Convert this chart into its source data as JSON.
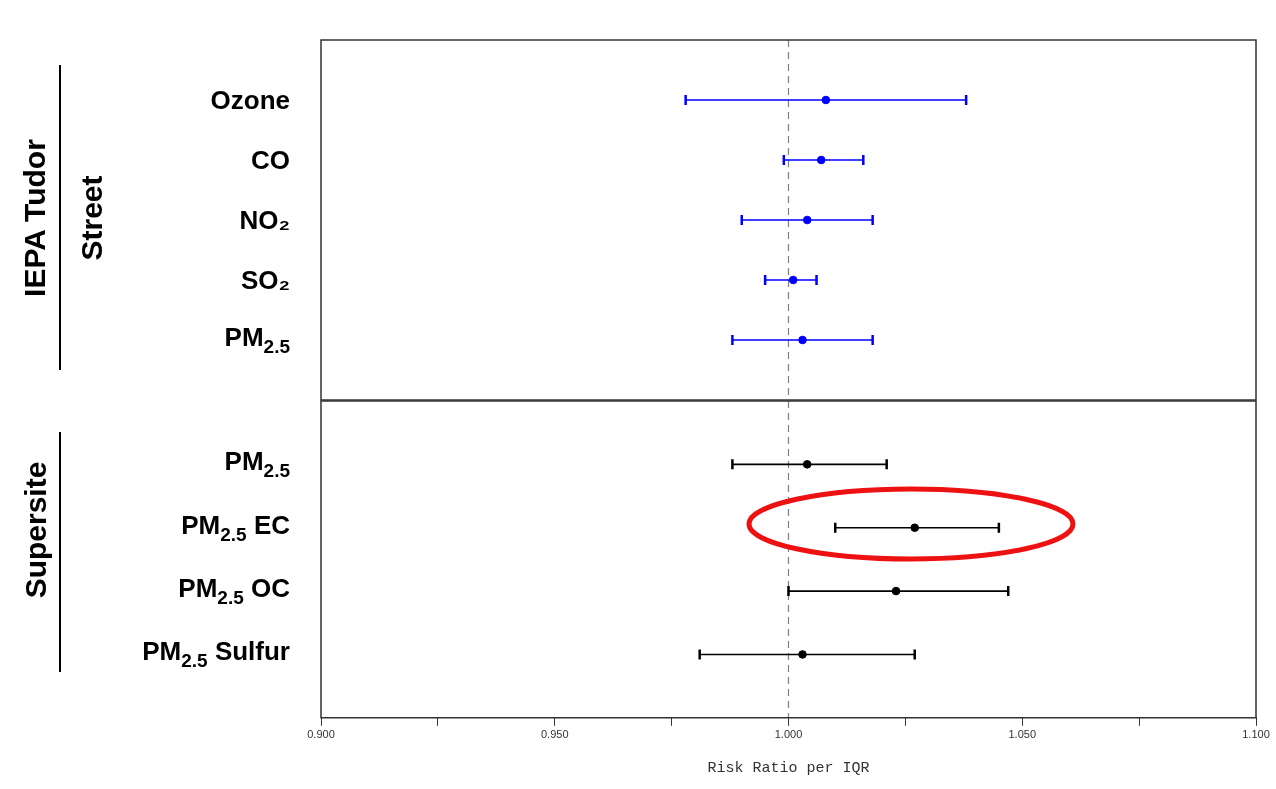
{
  "chart_data": [
    {
      "type": "scatter",
      "orientation": "horizontal",
      "categories": [
        "Ozone",
        "CO",
        "NO₂",
        "SO₂",
        "PM$_{2.5}$"
      ],
      "values": [
        1.008,
        1.007,
        1.004,
        1.001,
        1.003
      ],
      "errors": [
        [
          0.978,
          1.038
        ],
        [
          0.999,
          1.016
        ],
        [
          0.99,
          1.018
        ],
        [
          0.995,
          1.006
        ],
        [
          0.988,
          1.018
        ]
      ],
      "color": "#0000ff",
      "marker": "circle",
      "xlim": [
        0.9,
        1.1
      ],
      "tick_labels": "y",
      "legend": false,
      "ref_lines": [
        {
          "axis": "x",
          "value": 1.0,
          "color": "#808080",
          "line_style": "dashed"
        }
      ],
      "annotations": [
        "IEPA Tudor Street"
      ]
    },
    {
      "type": "scatter",
      "orientation": "horizontal",
      "categories": [
        "PM$_{2.5}$",
        "PM$_{2.5}$ EC",
        "PM$_{2.5}$ OC",
        "PM$_{2.5}$ Sulfur"
      ],
      "values": [
        1.004,
        1.027,
        1.023,
        1.003
      ],
      "errors": [
        [
          0.988,
          1.021
        ],
        [
          1.01,
          1.045
        ],
        [
          1.0,
          1.047
        ],
        [
          0.981,
          1.027
        ]
      ],
      "color": "#000000",
      "marker": "circle",
      "xlim": [
        0.9,
        1.1
      ],
      "xticks": [
        {
          "value": 0.9,
          "label": "0.900"
        },
        {
          "value": 0.925,
          "label": null
        },
        {
          "value": 0.95,
          "label": "0.950"
        },
        {
          "value": 0.975,
          "label": null
        },
        {
          "value": 1.0,
          "label": "1.000"
        },
        {
          "value": 1.025,
          "label": null
        },
        {
          "value": 1.05,
          "label": "1.050"
        },
        {
          "value": 1.075,
          "label": null
        },
        {
          "value": 1.1,
          "label": "1.100"
        }
      ],
      "xlabel": "Risk Ratio per IQR",
      "legend": false,
      "ref_lines": [
        {
          "axis": "x",
          "value": 1.0,
          "color": "#808080",
          "line_style": "dashed"
        }
      ],
      "annotations": [
        "Supersite"
      ]
    }
  ]
}
